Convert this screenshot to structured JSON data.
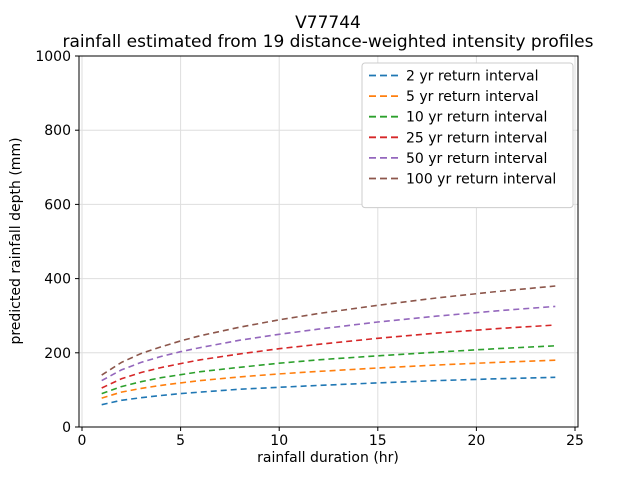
{
  "chart_data": {
    "type": "line",
    "title": "V77744",
    "subtitle": "rainfall estimated from 19 distance-weighted intensity profiles",
    "xlabel": "rainfall duration (hr)",
    "ylabel": "predicted rainfall depth (mm)",
    "xlim": [
      -0.15,
      25.15
    ],
    "ylim": [
      0,
      1000
    ],
    "xticks": [
      0,
      5,
      10,
      15,
      20,
      25
    ],
    "yticks": [
      0,
      200,
      400,
      600,
      800,
      1000
    ],
    "grid": true,
    "grid_color": "#dedede",
    "frame_color": "#000000",
    "legend_position": "upper right",
    "legend_border_color": "#cccccc",
    "line_style": "dashed",
    "x": [
      1,
      2,
      3,
      4,
      5,
      6,
      8,
      10,
      12,
      15,
      18,
      21,
      24
    ],
    "series": [
      {
        "name": "2 yr return interval",
        "color": "#1f77b4",
        "values": [
          60,
          72,
          79,
          85,
          90,
          94,
          102,
          107,
          112,
          119,
          125,
          130,
          134
        ]
      },
      {
        "name": "5 yr return interval",
        "color": "#ff7f0e",
        "values": [
          78,
          94,
          104,
          112,
          119,
          125,
          135,
          143,
          150,
          159,
          167,
          174,
          180
        ]
      },
      {
        "name": "10 yr return interval",
        "color": "#2ca02c",
        "values": [
          90,
          109,
          122,
          133,
          141,
          149,
          161,
          172,
          181,
          192,
          202,
          211,
          219
        ]
      },
      {
        "name": "25 yr return interval",
        "color": "#d62728",
        "values": [
          105,
          130,
          147,
          160,
          171,
          181,
          197,
          211,
          223,
          239,
          253,
          265,
          275
        ]
      },
      {
        "name": "50 yr return interval",
        "color": "#9467bd",
        "values": [
          125,
          154,
          174,
          190,
          203,
          214,
          234,
          250,
          264,
          283,
          299,
          313,
          325
        ]
      },
      {
        "name": "100 yr return interval",
        "color": "#8c564b",
        "values": [
          140,
          174,
          198,
          216,
          232,
          246,
          269,
          289,
          306,
          328,
          348,
          365,
          380
        ]
      }
    ]
  }
}
